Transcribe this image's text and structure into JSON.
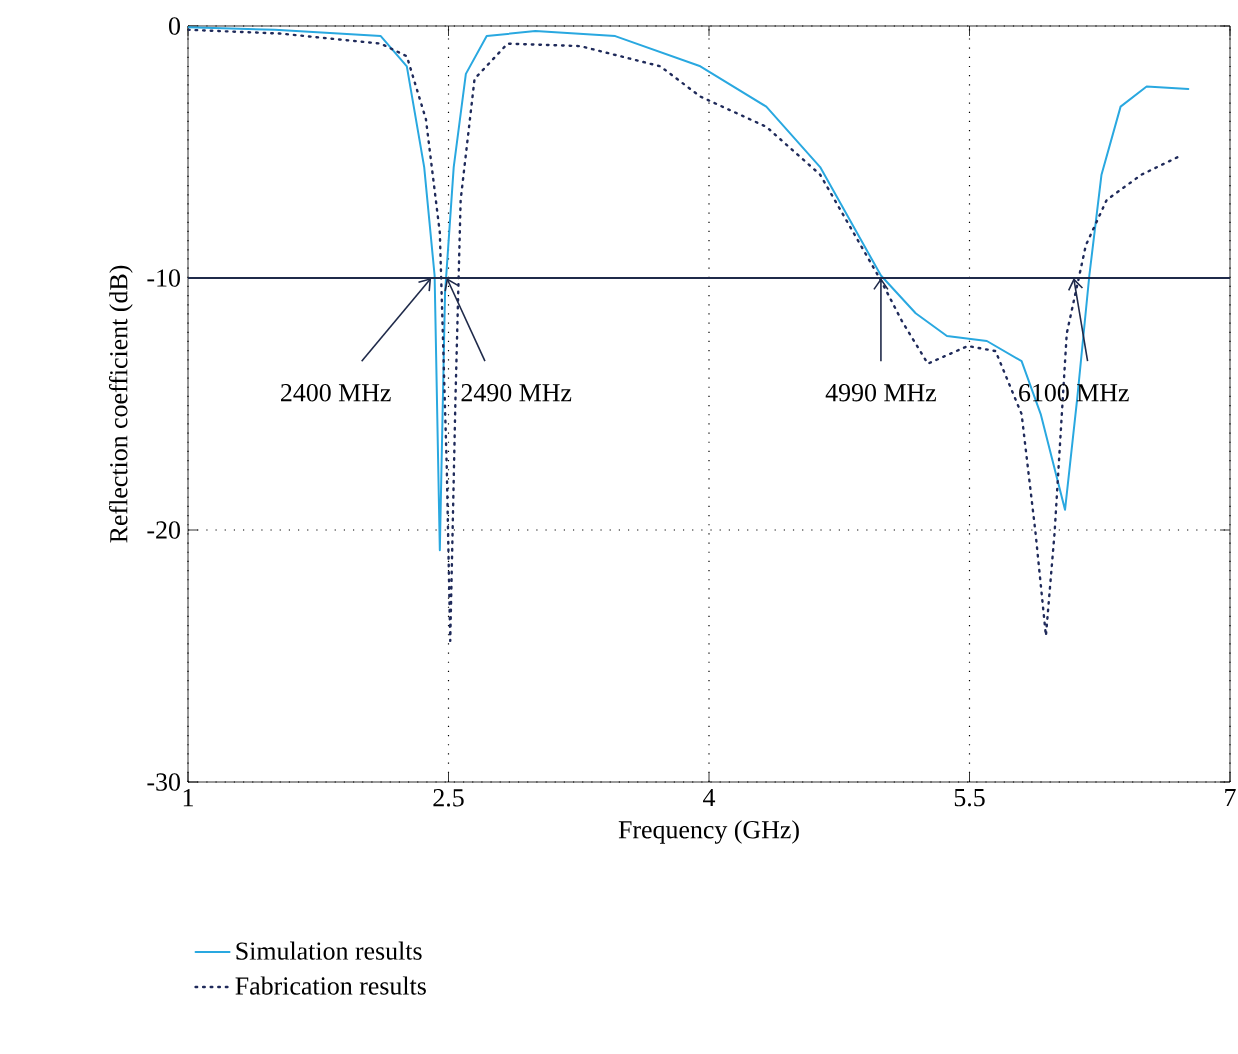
{
  "chart_data": {
    "type": "line",
    "xlabel": "Frequency (GHz)",
    "ylabel": "Reflection coefficient (dB)",
    "xlim": [
      1,
      7
    ],
    "ylim": [
      -30,
      0
    ],
    "xticks": [
      1,
      2.5,
      4,
      5.5,
      7
    ],
    "yticks": [
      -30,
      -20,
      -10,
      0
    ],
    "grid": true,
    "legend": "bottom",
    "ref_lines": [
      {
        "axis": "y",
        "value": -10,
        "color": "#1f2a4a",
        "line_style": "solid"
      }
    ],
    "annotations": [
      {
        "text": "2400 MHz",
        "x": 2.4,
        "y": -10
      },
      {
        "text": "2490 MHz",
        "x": 2.49,
        "y": -10
      },
      {
        "text": "4990 MHz",
        "x": 4.99,
        "y": -10
      },
      {
        "text": "6100 MHz",
        "x": 6.1,
        "y": -10
      }
    ],
    "series": [
      {
        "name": "Simulation results",
        "color": "#29a8e0",
        "line_style": "solid",
        "x": [
          1,
          1.5,
          2.11,
          2.26,
          2.36,
          2.42,
          2.45,
          2.48,
          2.53,
          2.6,
          2.72,
          3.0,
          3.46,
          3.95,
          4.33,
          4.64,
          4.99,
          5.19,
          5.37,
          5.6,
          5.8,
          5.91,
          6.05,
          6.12,
          6.19,
          6.26,
          6.37,
          6.52,
          6.76
        ],
        "values": [
          -0.05,
          -0.15,
          -0.4,
          -1.6,
          -5.6,
          -9.9,
          -20.8,
          -10.6,
          -5.6,
          -1.9,
          -0.4,
          -0.2,
          -0.4,
          -1.6,
          -3.2,
          -5.6,
          -9.9,
          -11.4,
          -12.3,
          -12.5,
          -13.3,
          -15.4,
          -19.2,
          -14.8,
          -9.9,
          -5.9,
          -3.2,
          -2.4,
          -2.5
        ]
      },
      {
        "name": "Fabrication results",
        "color": "#1f2a5a",
        "line_style": "dotted",
        "x": [
          1,
          1.53,
          2.11,
          2.26,
          2.37,
          2.45,
          2.49,
          2.51,
          2.54,
          2.57,
          2.65,
          2.84,
          3.26,
          3.72,
          3.95,
          4.33,
          4.64,
          4.99,
          5.11,
          5.26,
          5.49,
          5.65,
          5.8,
          5.88,
          5.94,
          5.99,
          6.06,
          6.17,
          6.29,
          6.49,
          6.7
        ],
        "values": [
          -0.15,
          -0.3,
          -0.7,
          -1.2,
          -3.7,
          -8.2,
          -17.5,
          -24.4,
          -14.8,
          -6.9,
          -2.1,
          -0.7,
          -0.8,
          -1.6,
          -2.8,
          -4.0,
          -5.9,
          -10.1,
          -11.7,
          -13.4,
          -12.7,
          -12.9,
          -15.4,
          -20.1,
          -24.2,
          -20.1,
          -12.2,
          -8.7,
          -6.9,
          -5.9,
          -5.2
        ]
      }
    ]
  }
}
